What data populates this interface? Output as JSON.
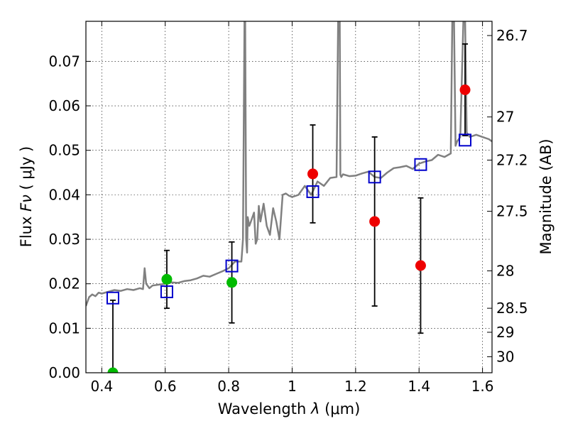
{
  "chart_data": {
    "type": "scatter",
    "title": "",
    "xlabel_prefix": "Wavelength  ",
    "xlabel_symbol": "λ",
    "xlabel_unit": " (μm)",
    "ylabel_prefix": "Flux  ",
    "ylabel_symbol": "Fν",
    "ylabel_unit": "  ( μJy )",
    "y2label": "Magnitude (AB)",
    "xlim": [
      0.35,
      1.63
    ],
    "ylim": [
      0.0,
      0.079
    ],
    "grid": true,
    "x_ticks": [
      0.4,
      0.6,
      0.8,
      1.0,
      1.2,
      1.4,
      1.6
    ],
    "x_tick_labels": [
      "0.4",
      "0.6",
      "0.8",
      "1",
      "1.2",
      "1.4",
      "1.6"
    ],
    "y_ticks": [
      0.0,
      0.01,
      0.02,
      0.03,
      0.04,
      0.05,
      0.06,
      0.07
    ],
    "y_tick_labels": [
      "0.00",
      "0.01",
      "0.02",
      "0.03",
      "0.04",
      "0.05",
      "0.06",
      "0.07"
    ],
    "y2_ticks": [
      {
        "label": "26.7",
        "flux": 0.0758
      },
      {
        "label": "27",
        "flux": 0.0575
      },
      {
        "label": "27.2",
        "flux": 0.0478
      },
      {
        "label": "27.5",
        "flux": 0.0363
      },
      {
        "label": "28",
        "flux": 0.0229
      },
      {
        "label": "28.5",
        "flux": 0.0145
      },
      {
        "label": "29",
        "flux": 0.0091
      },
      {
        "label": "30",
        "flux": 0.0036
      }
    ],
    "series": [
      {
        "kind": "line",
        "color": "#808080",
        "x": [
          0.35,
          0.36,
          0.37,
          0.38,
          0.39,
          0.4,
          0.42,
          0.44,
          0.46,
          0.48,
          0.5,
          0.52,
          0.53,
          0.535,
          0.54,
          0.55,
          0.56,
          0.58,
          0.6,
          0.62,
          0.64,
          0.66,
          0.68,
          0.7,
          0.72,
          0.74,
          0.76,
          0.78,
          0.8,
          0.82,
          0.84,
          0.845,
          0.85,
          0.852,
          0.855,
          0.858,
          0.86,
          0.865,
          0.87,
          0.88,
          0.885,
          0.89,
          0.895,
          0.9,
          0.91,
          0.92,
          0.93,
          0.94,
          0.95,
          0.96,
          0.97,
          0.98,
          0.99,
          1.0,
          1.02,
          1.04,
          1.06,
          1.08,
          1.1,
          1.12,
          1.14,
          1.145,
          1.15,
          1.152,
          1.155,
          1.16,
          1.18,
          1.2,
          1.22,
          1.24,
          1.26,
          1.28,
          1.3,
          1.32,
          1.34,
          1.36,
          1.38,
          1.4,
          1.42,
          1.44,
          1.46,
          1.48,
          1.5,
          1.505,
          1.51,
          1.515,
          1.52,
          1.53,
          1.54,
          1.545,
          1.55,
          1.56,
          1.58,
          1.6,
          1.62,
          1.63
        ],
        "y": [
          0.015,
          0.017,
          0.0176,
          0.0172,
          0.018,
          0.0178,
          0.0182,
          0.0186,
          0.0184,
          0.0188,
          0.0186,
          0.019,
          0.0188,
          0.0235,
          0.02,
          0.019,
          0.0196,
          0.0198,
          0.02,
          0.0203,
          0.0202,
          0.0206,
          0.0208,
          0.0212,
          0.0218,
          0.0216,
          0.0222,
          0.0228,
          0.0235,
          0.025,
          0.025,
          0.03,
          0.08,
          0.08,
          0.03,
          0.027,
          0.035,
          0.033,
          0.034,
          0.036,
          0.029,
          0.03,
          0.0375,
          0.034,
          0.038,
          0.033,
          0.031,
          0.037,
          0.034,
          0.03,
          0.04,
          0.0403,
          0.0398,
          0.0395,
          0.04,
          0.042,
          0.04,
          0.043,
          0.042,
          0.0438,
          0.044,
          0.08,
          0.08,
          0.0445,
          0.044,
          0.0446,
          0.0442,
          0.0443,
          0.0448,
          0.0452,
          0.044,
          0.0438,
          0.045,
          0.046,
          0.0462,
          0.0465,
          0.0458,
          0.047,
          0.0475,
          0.0478,
          0.049,
          0.0485,
          0.0493,
          0.08,
          0.08,
          0.051,
          0.052,
          0.053,
          0.08,
          0.08,
          0.054,
          0.053,
          0.0535,
          0.053,
          0.0525,
          0.052
        ]
      },
      {
        "kind": "open-square",
        "color": "#0000cc",
        "x": [
          0.435,
          0.605,
          0.81,
          1.065,
          1.26,
          1.405,
          1.545
        ],
        "y": [
          0.0168,
          0.0182,
          0.024,
          0.0407,
          0.044,
          0.0468,
          0.0523
        ]
      },
      {
        "kind": "filled-circle",
        "color": "#00bb00",
        "x": [
          0.435,
          0.605,
          0.81
        ],
        "y": [
          0.0,
          0.021,
          0.0203
        ],
        "err_lo": [
          0.0,
          0.0065,
          0.0091
        ],
        "err_hi": [
          0.0,
          0.0065,
          0.0091
        ]
      },
      {
        "kind": "filled-circle",
        "color": "#ee0000",
        "x": [
          1.065,
          1.26,
          1.405,
          1.545
        ],
        "y": [
          0.0447,
          0.034,
          0.0241,
          0.0636
        ],
        "err_lo": [
          0.011,
          0.019,
          0.0152,
          0.0103
        ],
        "err_hi": [
          0.011,
          0.019,
          0.0152,
          0.0103
        ]
      }
    ],
    "extra_errorbars": [
      {
        "x": 0.435,
        "lo": 0.0,
        "hi": 0.0163
      }
    ]
  }
}
